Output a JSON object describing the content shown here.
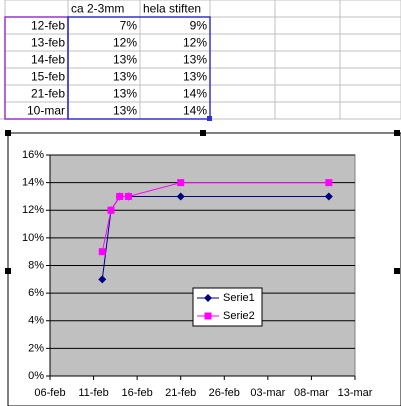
{
  "table": {
    "header": [
      "ca 2-3mm",
      "hela stiften"
    ],
    "rows": [
      [
        "12-feb",
        "7%",
        "9%"
      ],
      [
        "13-feb",
        "12%",
        "12%"
      ],
      [
        "14-feb",
        "13%",
        "13%"
      ],
      [
        "15-feb",
        "13%",
        "13%"
      ],
      [
        "21-feb",
        "13%",
        "14%"
      ],
      [
        "10-mar",
        "13%",
        "14%"
      ]
    ]
  },
  "chart_data": {
    "type": "line",
    "x": [
      "12-feb",
      "13-feb",
      "14-feb",
      "15-feb",
      "21-feb",
      "10-mar"
    ],
    "series": [
      {
        "name": "Serie1",
        "color": "#000080",
        "marker": "diamond",
        "values": [
          7,
          12,
          13,
          13,
          13,
          13
        ]
      },
      {
        "name": "Serie2",
        "color": "#ff00ff",
        "marker": "square",
        "values": [
          9,
          12,
          13,
          13,
          14,
          14
        ]
      }
    ],
    "xlim": [
      "06-feb",
      "13-mar"
    ],
    "xticks": [
      "06-feb",
      "11-feb",
      "16-feb",
      "21-feb",
      "26-feb",
      "03-mar",
      "08-mar",
      "13-mar"
    ],
    "ylim": [
      0,
      16
    ],
    "yticks": [
      {
        "value": 0,
        "label": "0%"
      },
      {
        "value": 2,
        "label": "2%"
      },
      {
        "value": 4,
        "label": "4%"
      },
      {
        "value": 6,
        "label": "6%"
      },
      {
        "value": 8,
        "label": "8%"
      },
      {
        "value": 10,
        "label": "10%"
      },
      {
        "value": 12,
        "label": "12%"
      },
      {
        "value": 14,
        "label": "14%"
      },
      {
        "value": 16,
        "label": "16%"
      }
    ],
    "grid": true,
    "plot_background": "#c0c0c0"
  }
}
